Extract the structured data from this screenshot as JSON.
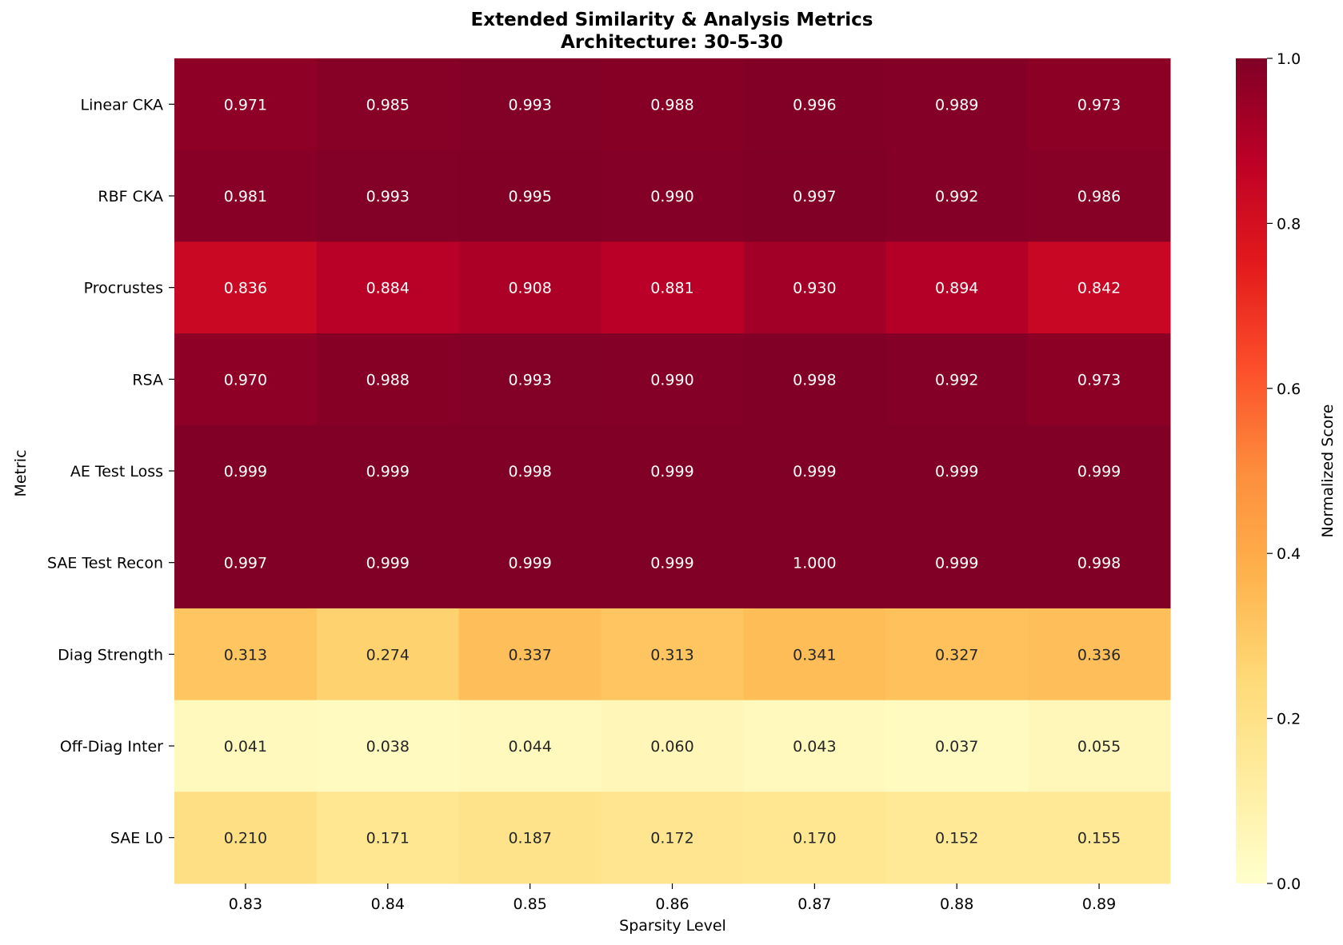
{
  "chart_data": {
    "type": "heatmap",
    "title_lines": [
      "Extended Similarity & Analysis Metrics",
      "Architecture: 30-5-30"
    ],
    "xlabel": "Sparsity Level",
    "ylabel": "Metric",
    "x_categories": [
      "0.83",
      "0.84",
      "0.85",
      "0.86",
      "0.87",
      "0.88",
      "0.89"
    ],
    "y_categories": [
      "Linear CKA",
      "RBF CKA",
      "Procrustes",
      "RSA",
      "AE Test Loss",
      "SAE Test Recon",
      "Diag Strength",
      "Off-Diag Inter",
      "SAE L0"
    ],
    "values": [
      [
        0.971,
        0.985,
        0.993,
        0.988,
        0.996,
        0.989,
        0.973
      ],
      [
        0.981,
        0.993,
        0.995,
        0.99,
        0.997,
        0.992,
        0.986
      ],
      [
        0.836,
        0.884,
        0.908,
        0.881,
        0.93,
        0.894,
        0.842
      ],
      [
        0.97,
        0.988,
        0.993,
        0.99,
        0.998,
        0.992,
        0.973
      ],
      [
        0.999,
        0.999,
        0.998,
        0.999,
        0.999,
        0.999,
        0.999
      ],
      [
        0.997,
        0.999,
        0.999,
        0.999,
        1.0,
        0.999,
        0.998
      ],
      [
        0.313,
        0.274,
        0.337,
        0.313,
        0.341,
        0.327,
        0.336
      ],
      [
        0.041,
        0.038,
        0.044,
        0.06,
        0.043,
        0.037,
        0.055
      ],
      [
        0.21,
        0.171,
        0.187,
        0.172,
        0.17,
        0.152,
        0.155
      ]
    ],
    "value_format_decimals": 3,
    "colorbar": {
      "label": "Normalized Score",
      "range": [
        0.0,
        1.0
      ],
      "ticks": [
        "0.0",
        "0.2",
        "0.4",
        "0.6",
        "0.8",
        "1.0"
      ],
      "colormap": "YlOrRd",
      "colormap_stops": [
        "#ffffcc",
        "#ffeda0",
        "#fed976",
        "#feb24c",
        "#fd8d3c",
        "#fc4e2a",
        "#e31a1c",
        "#bd0026",
        "#800026"
      ]
    }
  }
}
